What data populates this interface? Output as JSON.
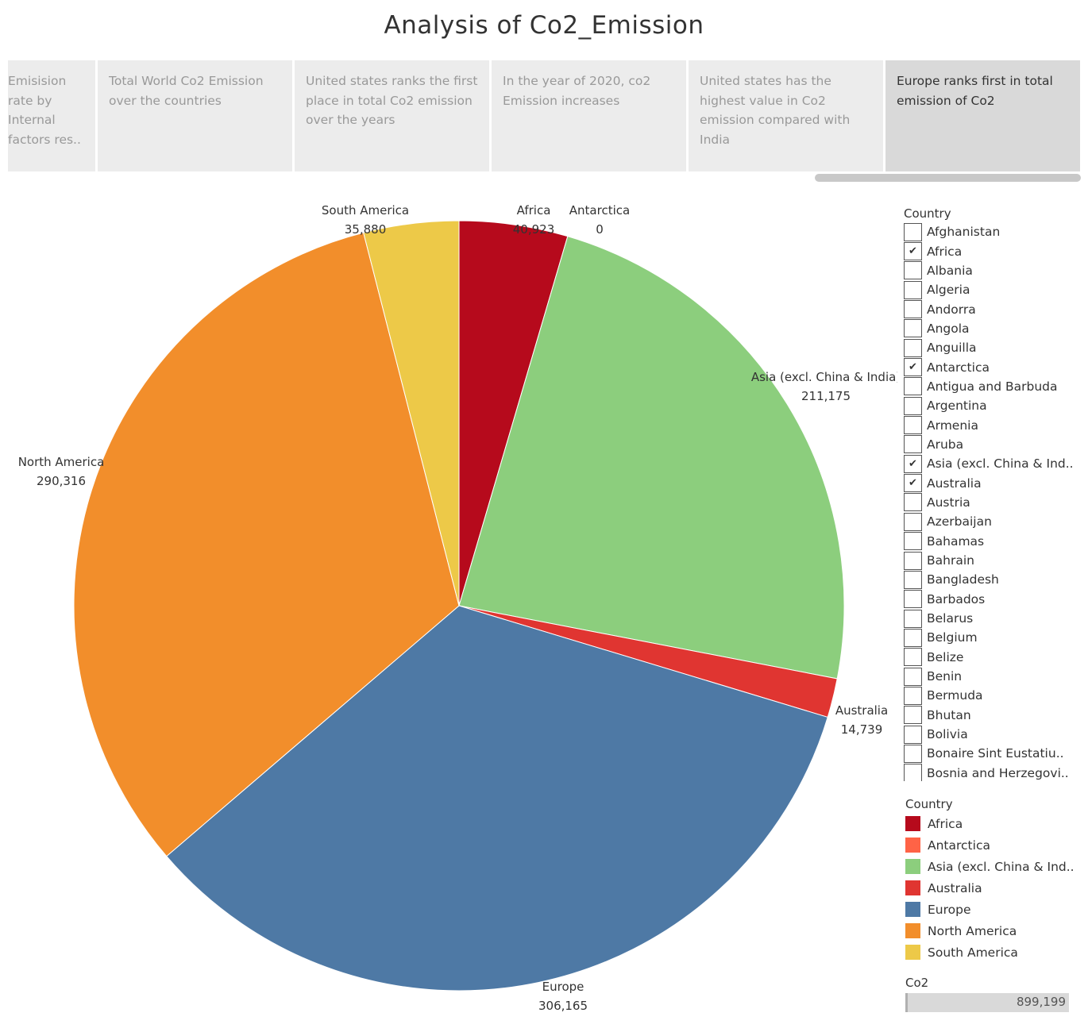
{
  "title": "Analysis of Co2_Emission",
  "story_points": [
    {
      "text": "Emisision rate by Internal factors res..",
      "active": false
    },
    {
      "text": "Total World Co2 Emission over the countries",
      "active": false
    },
    {
      "text": "United states ranks the first place in total Co2 emission over the years",
      "active": false
    },
    {
      "text": "In the year of 2020, co2 Emission increases",
      "active": false
    },
    {
      "text": "United states has the highest value in  Co2 emission compared with India",
      "active": false
    },
    {
      "text": "Europe ranks first in total emission of Co2",
      "active": true
    }
  ],
  "chart_data": {
    "type": "pie",
    "slices": [
      {
        "label": "Africa",
        "value": 40923,
        "value_label": "40,923",
        "color": "#b60a1c"
      },
      {
        "label": "Antarctica",
        "value": 0,
        "value_label": "0",
        "color": "#ff6346"
      },
      {
        "label": "Asia (excl. China & India)",
        "value": 211175,
        "value_label": "211,175",
        "color": "#8cce7d"
      },
      {
        "label": "Australia",
        "value": 14739,
        "value_label": "14,739",
        "color": "#e03531"
      },
      {
        "label": "Europe",
        "value": 306165,
        "value_label": "306,165",
        "color": "#4e79a5"
      },
      {
        "label": "North America",
        "value": 290316,
        "value_label": "290,316",
        "color": "#f28e2b"
      },
      {
        "label": "South America",
        "value": 35880,
        "value_label": "35,880",
        "color": "#edc948"
      }
    ]
  },
  "filter": {
    "title": "Country",
    "items": [
      {
        "label": "Afghanistan",
        "checked": false
      },
      {
        "label": "Africa",
        "checked": true
      },
      {
        "label": "Albania",
        "checked": false
      },
      {
        "label": "Algeria",
        "checked": false
      },
      {
        "label": "Andorra",
        "checked": false
      },
      {
        "label": "Angola",
        "checked": false
      },
      {
        "label": "Anguilla",
        "checked": false
      },
      {
        "label": "Antarctica",
        "checked": true
      },
      {
        "label": "Antigua and Barbuda",
        "checked": false
      },
      {
        "label": "Argentina",
        "checked": false
      },
      {
        "label": "Armenia",
        "checked": false
      },
      {
        "label": "Aruba",
        "checked": false
      },
      {
        "label": "Asia (excl. China & Ind..",
        "checked": true
      },
      {
        "label": "Australia",
        "checked": true
      },
      {
        "label": "Austria",
        "checked": false
      },
      {
        "label": "Azerbaijan",
        "checked": false
      },
      {
        "label": "Bahamas",
        "checked": false
      },
      {
        "label": "Bahrain",
        "checked": false
      },
      {
        "label": "Bangladesh",
        "checked": false
      },
      {
        "label": "Barbados",
        "checked": false
      },
      {
        "label": "Belarus",
        "checked": false
      },
      {
        "label": "Belgium",
        "checked": false
      },
      {
        "label": "Belize",
        "checked": false
      },
      {
        "label": "Benin",
        "checked": false
      },
      {
        "label": "Bermuda",
        "checked": false
      },
      {
        "label": "Bhutan",
        "checked": false
      },
      {
        "label": "Bolivia",
        "checked": false
      },
      {
        "label": "Bonaire Sint Eustatiu..",
        "checked": false
      },
      {
        "label": "Bosnia and Herzegovi..",
        "checked": false
      }
    ]
  },
  "legend": {
    "title": "Country",
    "items": [
      {
        "label": "Africa",
        "color": "#b60a1c"
      },
      {
        "label": "Antarctica",
        "color": "#ff6346"
      },
      {
        "label": "Asia (excl. China & Ind..",
        "color": "#8cce7d"
      },
      {
        "label": "Australia",
        "color": "#e03531"
      },
      {
        "label": "Europe",
        "color": "#4e79a5"
      },
      {
        "label": "North America",
        "color": "#f28e2b"
      },
      {
        "label": "South America",
        "color": "#edc948"
      }
    ]
  },
  "size_legend": {
    "title": "Co2",
    "value": "899,199"
  }
}
